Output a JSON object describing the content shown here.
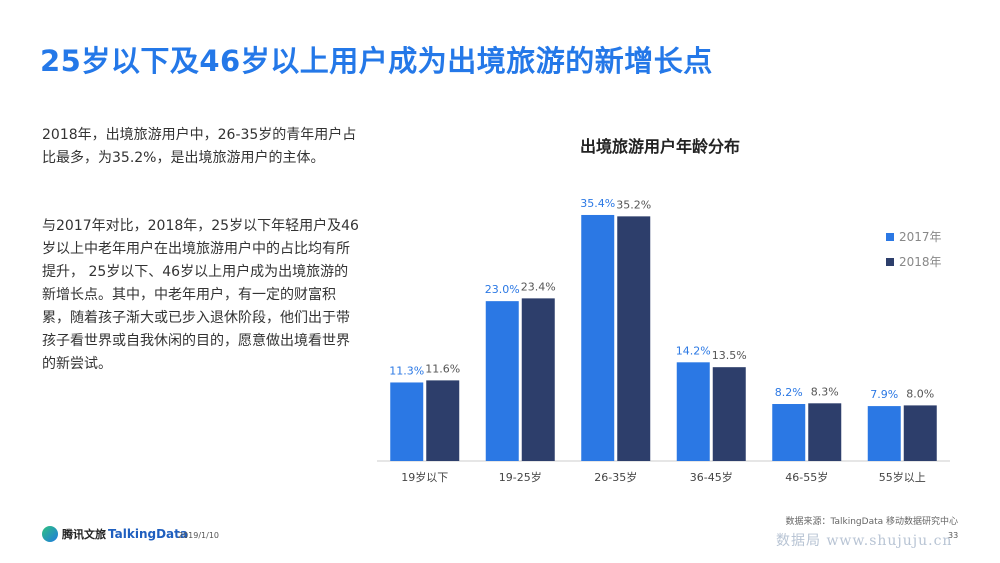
{
  "header": {
    "title": "25岁以下及46岁以上用户成为出境旅游的新增长点"
  },
  "body_text": {
    "paragraph1": "2018年，出境旅游用户中，26-35岁的青年用户占比最多，为35.2%，是出境旅游用户的主体。",
    "paragraph2": "与2017年对比，2018年，25岁以下年轻用户及46岁以上中老年用户在出境旅游用户中的占比均有所提升， 25岁以下、46岁以上用户成为出境旅游的新增长点。其中，中老年用户，有一定的财富积累，随着孩子渐大或已步入退休阶段，他们出于带孩子看世界或自我休闲的目的，愿意做出境看世界的新尝试。"
  },
  "chart_data": {
    "type": "bar",
    "title": "出境旅游用户年龄分布",
    "categories": [
      "19岁以下",
      "19-25岁",
      "26-35岁",
      "36-45岁",
      "46-55岁",
      "55岁以上"
    ],
    "series": [
      {
        "name": "2017年",
        "values": [
          11.3,
          23.0,
          35.4,
          14.2,
          8.2,
          7.9
        ],
        "labels": [
          "11.3%",
          "23.0%",
          "35.4%",
          "14.2%",
          "8.2%",
          "7.9%"
        ],
        "color": "#2b78e4"
      },
      {
        "name": "2018年",
        "values": [
          11.6,
          23.4,
          35.2,
          13.5,
          8.3,
          8.0
        ],
        "labels": [
          "11.6%",
          "23.4%",
          "35.2%",
          "13.5%",
          "8.3%",
          "8.0%"
        ],
        "color": "#2d3e6b"
      }
    ],
    "ylim": [
      0,
      40
    ],
    "legend_position": "top-right",
    "grid": false
  },
  "footer": {
    "source": "数据来源：TalkingData 移动数据研究中心",
    "brand1": "腾讯文旅",
    "brand2": "TalkingData",
    "date": "2019/1/10",
    "page": "33",
    "watermark": "数据局 www.shujuju.cn"
  }
}
